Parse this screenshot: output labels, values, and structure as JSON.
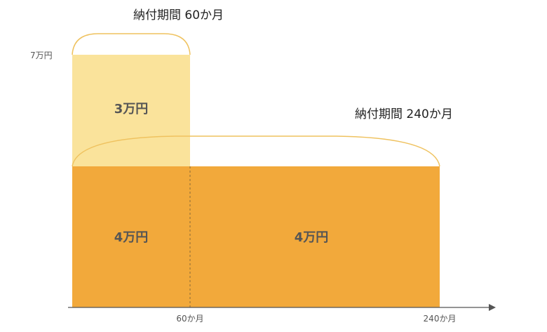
{
  "title_short": "納付期間 60か月",
  "title_long": "納付期間 240か月",
  "y_tick": "7万円",
  "blocks": {
    "upper_left": "3万円",
    "lower_left": "4万円",
    "lower_right": "4万円"
  },
  "x_ticks": {
    "mid": "60か月",
    "end": "240か月"
  },
  "colors": {
    "light_block": "#fae39b",
    "dark_block": "#f2a93b",
    "brace": "#efc25f",
    "axis": "#555555"
  }
}
